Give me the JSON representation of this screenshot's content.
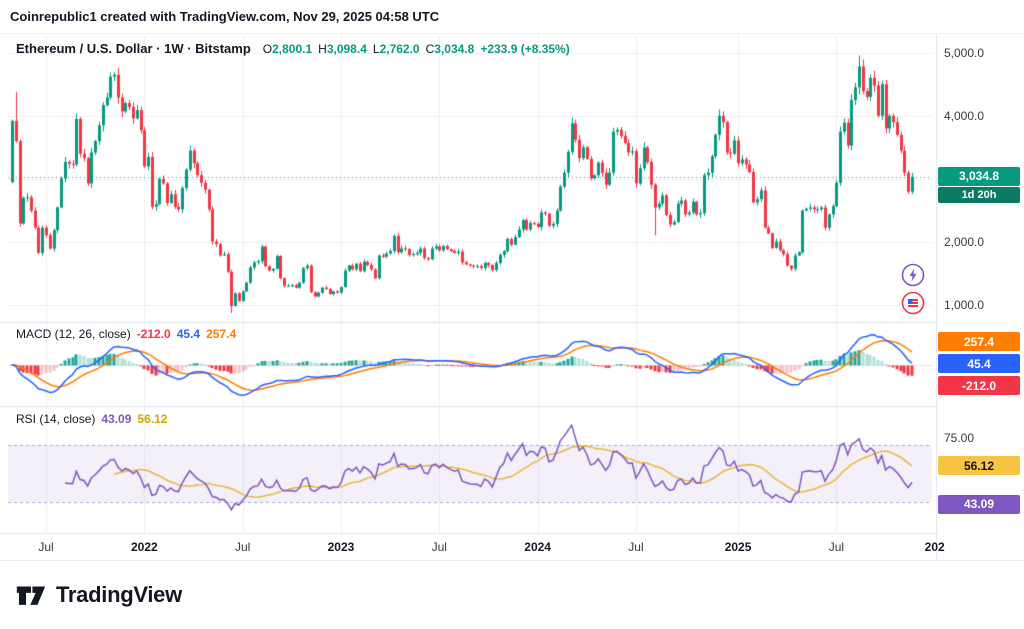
{
  "topbar": {
    "attribution": "Coinrepublic1 created with TradingView.com, Nov 29, 2025 04:58 UTC"
  },
  "symbol_bar": {
    "title": "Ethereum / U.S. Dollar · 1W · Bitstamp",
    "ohlc": {
      "open_label": "O",
      "open": "2,800.1",
      "high_label": "H",
      "high": "3,098.4",
      "low_label": "L",
      "low": "2,762.0",
      "close_label": "C",
      "close": "3,034.8",
      "change": "+233.9 (+8.35%)"
    }
  },
  "price_scale": {
    "labels": [
      {
        "p": 5000,
        "text": "5,000.0"
      },
      {
        "p": 4000,
        "text": "4,000.0"
      },
      {
        "p": 2000,
        "text": "2,000.0"
      },
      {
        "p": 1000,
        "text": "1,000.0"
      }
    ],
    "price_badge": {
      "text": "3,034.8",
      "countdown": "1d 20h"
    }
  },
  "macd_panel": {
    "legend": "MACD (12, 26, close)",
    "histogram_text": "-212.0",
    "macd_text": "45.4",
    "signal_text": "257.4",
    "badges": {
      "signal": "257.4",
      "macd": "45.4",
      "histogram": "-212.0"
    }
  },
  "rsi_panel": {
    "legend": "RSI (14, close)",
    "rsi_text": "43.09",
    "ma_text": "56.12",
    "badges": {
      "ma": "56.12",
      "rsi": "43.09"
    },
    "scale_labels": [
      {
        "v": 75,
        "text": "75.00"
      },
      {
        "v": 25,
        "text": "25.00"
      }
    ]
  },
  "x_axis": {
    "ticks": [
      {
        "i": 9,
        "label": "Jul",
        "bold": false
      },
      {
        "i": 35,
        "label": "2022",
        "bold": true
      },
      {
        "i": 61,
        "label": "Jul",
        "bold": false
      },
      {
        "i": 87,
        "label": "2023",
        "bold": true
      },
      {
        "i": 113,
        "label": "Jul",
        "bold": false
      },
      {
        "i": 139,
        "label": "2024",
        "bold": true
      },
      {
        "i": 165,
        "label": "Jul",
        "bold": false
      },
      {
        "i": 192,
        "label": "2025",
        "bold": true
      },
      {
        "i": 218,
        "label": "Jul",
        "bold": false
      },
      {
        "i": 244,
        "label": "202",
        "bold": true
      }
    ]
  },
  "footer": {
    "brand": "TradingView"
  },
  "colors": {
    "up": "#089981",
    "down": "#f23645",
    "macd_line": "#2962ff",
    "signal_line": "#ff7d00",
    "hist_up": "#26a69a",
    "hist_up_faded": "rgba(38,166,154,0.35)",
    "hist_down": "#f23645",
    "hist_down_faded": "rgba(242,54,69,0.30)",
    "rsi_line": "#7e57c2",
    "rsi_ma_line": "#e8b93b",
    "rsi_band": "rgba(126,87,194,0.09)",
    "rsi_limit": "rgba(126,87,194,0.55)",
    "grid": "rgba(42,46,57,0.07)",
    "separator": "#e0e3eb",
    "price_badge_bg": "#089981",
    "countdown_bg": "#0b7a63",
    "badge_orange": "#ff7d00",
    "badge_blue": "#2962ff",
    "badge_red": "#f23645",
    "badge_yellow": "#f6c544",
    "badge_purple": "#7e57c2"
  },
  "chart_data": {
    "type": "candlestick",
    "title": "Ethereum / U.S. Dollar",
    "timeframe": "1W",
    "exchange": "Bitstamp",
    "start_week": "2021-05-03",
    "first_open": 2950,
    "weekly_closes": [
      3920,
      3600,
      2295,
      2700,
      2710,
      2500,
      2230,
      1830,
      2230,
      2110,
      1900,
      2190,
      2550,
      3010,
      3270,
      3240,
      3230,
      3950,
      3400,
      3330,
      2930,
      3420,
      3600,
      3850,
      4170,
      4290,
      4620,
      4650,
      4290,
      4070,
      4200,
      4140,
      3960,
      4090,
      3770,
      3200,
      3350,
      2560,
      2600,
      3000,
      2930,
      2620,
      2760,
      2560,
      2520,
      2860,
      3150,
      3450,
      3250,
      3060,
      2940,
      2830,
      2520,
      2010,
      1970,
      1790,
      1810,
      1530,
      990,
      1190,
      1070,
      1220,
      1360,
      1600,
      1680,
      1700,
      1930,
      1620,
      1550,
      1580,
      1780,
      1430,
      1310,
      1310,
      1320,
      1280,
      1360,
      1590,
      1630,
      1210,
      1140,
      1200,
      1280,
      1260,
      1180,
      1220,
      1200,
      1290,
      1550,
      1630,
      1570,
      1660,
      1540,
      1690,
      1640,
      1570,
      1430,
      1790,
      1770,
      1820,
      1860,
      2100,
      1840,
      1900,
      1890,
      1800,
      1810,
      1830,
      1900,
      1750,
      1730,
      1900,
      1930,
      1870,
      1940,
      1890,
      1860,
      1830,
      1850,
      1680,
      1650,
      1630,
      1620,
      1620,
      1590,
      1670,
      1640,
      1560,
      1670,
      1800,
      1860,
      2050,
      1960,
      2080,
      2200,
      2350,
      2200,
      2300,
      2290,
      2240,
      2470,
      2450,
      2260,
      2290,
      2500,
      2880,
      3100,
      3430,
      3880,
      3620,
      3330,
      3500,
      3320,
      3010,
      3060,
      3260,
      3100,
      2910,
      3100,
      3750,
      3780,
      3680,
      3570,
      3420,
      3440,
      2930,
      3170,
      3500,
      3270,
      2910,
      2550,
      2610,
      2740,
      2430,
      2280,
      2320,
      2610,
      2660,
      2440,
      2470,
      2640,
      2440,
      2460,
      3060,
      3100,
      3360,
      3700,
      4000,
      3900,
      3420,
      3400,
      3610,
      3250,
      3310,
      3230,
      3110,
      2630,
      2680,
      2820,
      2230,
      2140,
      1910,
      2010,
      1870,
      1810,
      1630,
      1580,
      1790,
      1840,
      2500,
      2530,
      2550,
      2520,
      2520,
      2550,
      2230,
      2440,
      2570,
      2940,
      3750,
      3890,
      3530,
      4250,
      4450,
      4780,
      4390,
      4300,
      4600,
      4480,
      4000,
      4500,
      3800,
      4000,
      3900,
      3700,
      3450,
      3100,
      2800,
      3034.8
    ],
    "overrides": {
      "0": {
        "open": 2950
      },
      "1": {
        "high": 4380
      },
      "58": {
        "low": 880
      },
      "170": {
        "low": 2110
      },
      "224": {
        "high": 4956
      },
      "238": {
        "open": 2800.1,
        "high": 3098.4,
        "low": 2762.0,
        "close": 3034.8
      }
    },
    "last_candle": {
      "open": 2800.1,
      "high": 3098.4,
      "low": 2762.0,
      "close": 3034.8,
      "change": 233.9,
      "change_pct": 8.35
    },
    "current_price": 3034.8,
    "y_axis": {
      "min": 800,
      "max": 5200,
      "gridlines": [
        1000,
        2000,
        3000,
        4000,
        5000
      ]
    },
    "indicators": {
      "macd": {
        "params": [
          12,
          26,
          9
        ],
        "current": {
          "histogram": -212.0,
          "macd": 45.4,
          "signal": 257.4
        }
      },
      "rsi": {
        "params": [
          14
        ],
        "current": 43.09,
        "ma_current": 56.12,
        "upper_band": 70,
        "lower_band": 30
      }
    }
  }
}
